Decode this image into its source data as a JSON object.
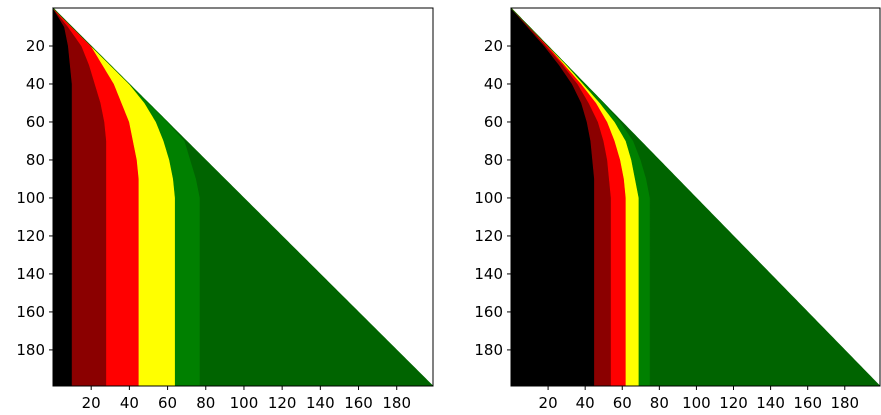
{
  "chart_data": [
    {
      "type": "heatmap",
      "xlim": [
        0,
        199
      ],
      "ylim": [
        199,
        0
      ],
      "xticks": [
        20,
        40,
        60,
        80,
        100,
        120,
        140,
        160,
        180
      ],
      "yticks": [
        20,
        40,
        60,
        80,
        100,
        120,
        140,
        160,
        180
      ],
      "grid": false,
      "region_colors": [
        "#000000",
        "#8b0000",
        "#ff0000",
        "#ffff00",
        "#008000",
        "#006400"
      ],
      "band_breaks": [
        {
          "y": 0,
          "x": [
            0,
            0,
            0,
            0,
            0
          ]
        },
        {
          "y": 10,
          "x": [
            6,
            8,
            10,
            10,
            10
          ]
        },
        {
          "y": 20,
          "x": [
            8,
            15,
            20,
            20,
            20
          ]
        },
        {
          "y": 30,
          "x": [
            9,
            19,
            26,
            30,
            30
          ]
        },
        {
          "y": 40,
          "x": [
            10,
            22,
            32,
            40,
            40
          ]
        },
        {
          "y": 50,
          "x": [
            10,
            25,
            36,
            48,
            50
          ]
        },
        {
          "y": 60,
          "x": [
            10,
            27,
            40,
            54,
            60
          ]
        },
        {
          "y": 70,
          "x": [
            10,
            28,
            42,
            58,
            69
          ]
        },
        {
          "y": 80,
          "x": [
            10,
            28,
            44,
            61,
            72
          ]
        },
        {
          "y": 90,
          "x": [
            10,
            28,
            45,
            63,
            75
          ]
        },
        {
          "y": 100,
          "x": [
            10,
            28,
            45,
            64,
            77
          ]
        },
        {
          "y": 199,
          "x": [
            10,
            28,
            45,
            64,
            77
          ]
        }
      ]
    },
    {
      "type": "heatmap",
      "xlim": [
        0,
        199
      ],
      "ylim": [
        199,
        0
      ],
      "xticks": [
        20,
        40,
        60,
        80,
        100,
        120,
        140,
        160,
        180
      ],
      "yticks": [
        20,
        40,
        60,
        80,
        100,
        120,
        140,
        160,
        180
      ],
      "grid": false,
      "region_colors": [
        "#000000",
        "#8b0000",
        "#ff0000",
        "#ffff00",
        "#008000",
        "#006400"
      ],
      "band_breaks": [
        {
          "y": 0,
          "x": [
            0,
            0,
            0,
            0,
            0
          ]
        },
        {
          "y": 10,
          "x": [
            9,
            10,
            10,
            10,
            10
          ]
        },
        {
          "y": 20,
          "x": [
            18,
            19,
            20,
            20,
            20
          ]
        },
        {
          "y": 30,
          "x": [
            26,
            28,
            29,
            30,
            30
          ]
        },
        {
          "y": 40,
          "x": [
            33,
            36,
            38,
            39,
            40
          ]
        },
        {
          "y": 50,
          "x": [
            38,
            42,
            46,
            48,
            50
          ]
        },
        {
          "y": 60,
          "x": [
            41,
            47,
            52,
            56,
            59
          ]
        },
        {
          "y": 70,
          "x": [
            43,
            50,
            56,
            62,
            66
          ]
        },
        {
          "y": 80,
          "x": [
            44,
            52,
            59,
            65,
            70
          ]
        },
        {
          "y": 90,
          "x": [
            45,
            53,
            61,
            67,
            73
          ]
        },
        {
          "y": 100,
          "x": [
            45,
            54,
            62,
            69,
            75
          ]
        },
        {
          "y": 199,
          "x": [
            45,
            54,
            62,
            69,
            75
          ]
        }
      ]
    }
  ]
}
